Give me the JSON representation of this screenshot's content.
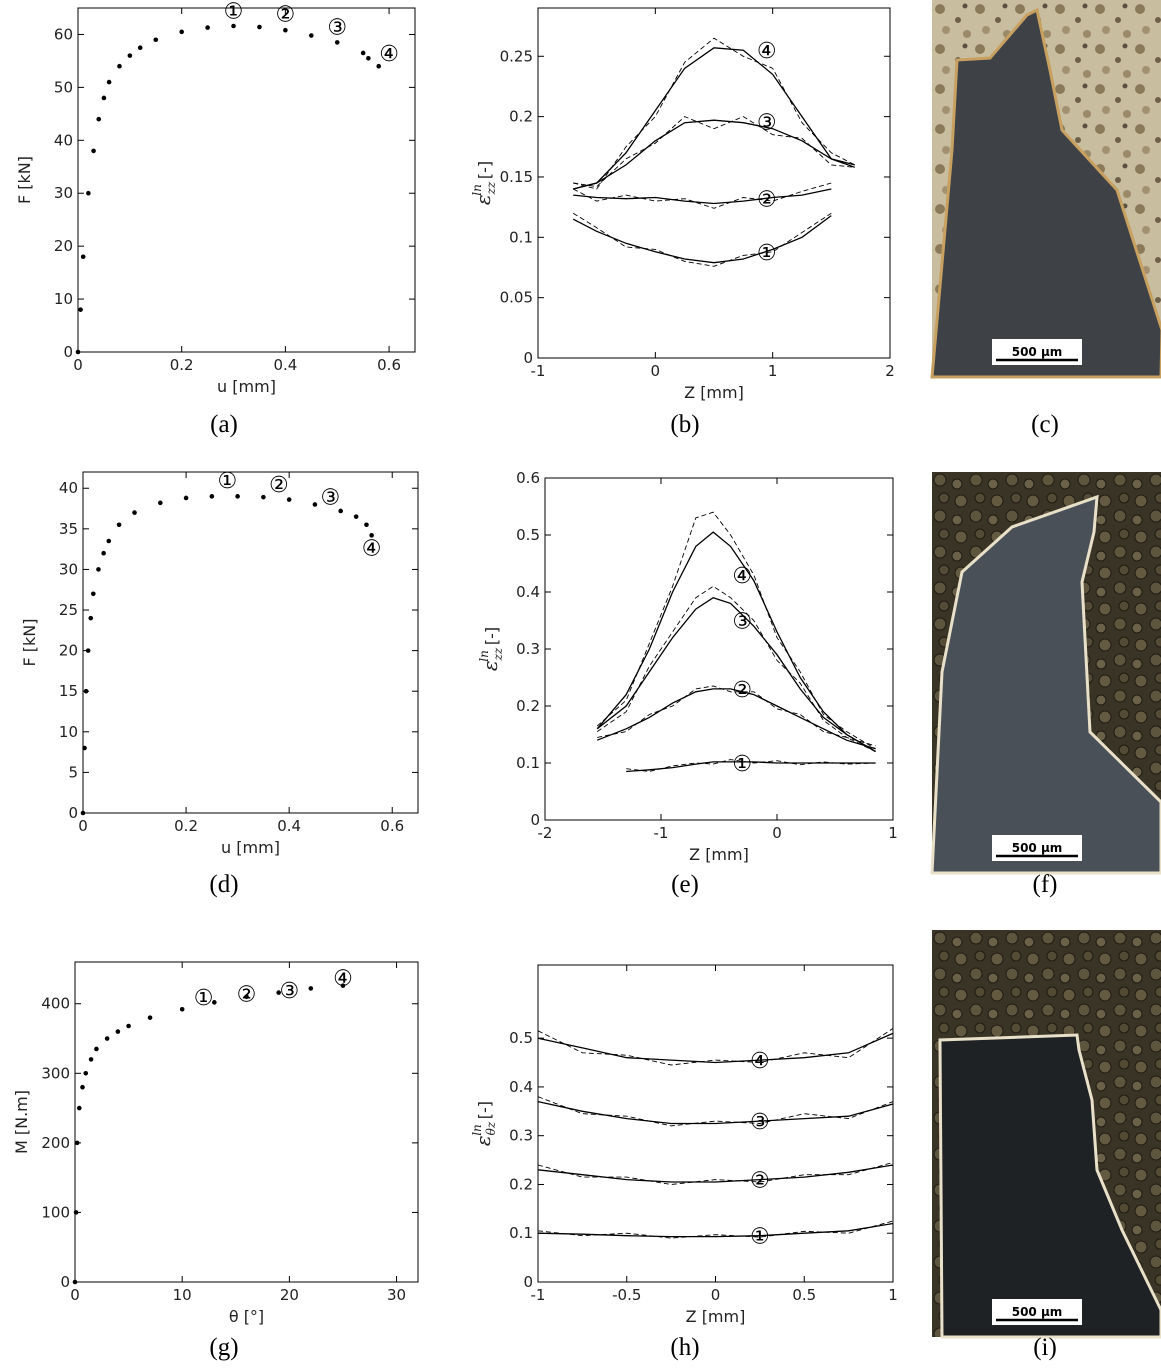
{
  "chart_data": [
    {
      "type": "scatter",
      "caption": "(a)",
      "xlabel": "u [mm]",
      "ylabel": {
        "text": "F [kN]"
      },
      "color": "#000000",
      "xlim": [
        0,
        0.65
      ],
      "xticks": [
        0,
        0.2,
        0.4,
        0.6
      ],
      "ylim": [
        0,
        65
      ],
      "yticks": [
        0,
        10,
        20,
        30,
        40,
        50,
        60
      ],
      "x": [
        0,
        0.005,
        0.01,
        0.02,
        0.03,
        0.04,
        0.05,
        0.06,
        0.08,
        0.1,
        0.12,
        0.15,
        0.2,
        0.25,
        0.3,
        0.35,
        0.4,
        0.45,
        0.5,
        0.55,
        0.56,
        0.58
      ],
      "values": [
        0,
        8,
        18,
        30,
        38,
        44,
        48,
        51,
        54,
        56,
        57.5,
        59,
        60.5,
        61.3,
        61.6,
        61.4,
        60.8,
        59.8,
        58.5,
        56.5,
        55.5,
        54
      ],
      "annotations": [
        {
          "text": "①",
          "x": 0.3,
          "y": 64.5
        },
        {
          "text": "②",
          "x": 0.4,
          "y": 64
        },
        {
          "text": "③",
          "x": 0.5,
          "y": 61.5
        },
        {
          "text": "④",
          "x": 0.6,
          "y": 56.5
        }
      ]
    },
    {
      "type": "line",
      "caption": "(b)",
      "xlabel": "Z [mm]",
      "ylabel": {
        "symbol": "ε",
        "sub": "zz",
        "sup": "ln",
        "unit": "[-]"
      },
      "xlim": [
        -1,
        2
      ],
      "xticks": [
        -1,
        0,
        1,
        2
      ],
      "ylim": [
        0,
        0.29
      ],
      "yticks": [
        0,
        0.05,
        0.1,
        0.15,
        0.2,
        0.25
      ],
      "x": [
        -0.7,
        -0.5,
        -0.25,
        0,
        0.25,
        0.5,
        0.75,
        1,
        1.25,
        1.5,
        1.7
      ],
      "series": [
        {
          "color": "#000000",
          "style": "solid",
          "values": [
            0.14,
            0.145,
            0.17,
            0.205,
            0.24,
            0.257,
            0.255,
            0.235,
            0.2,
            0.165,
            0.158
          ]
        },
        {
          "color": "#000000",
          "style": "dashed",
          "values": [
            0.145,
            0.14,
            0.175,
            0.2,
            0.245,
            0.265,
            0.25,
            0.24,
            0.195,
            0.17,
            0.16
          ]
        },
        {
          "color": "#000000",
          "style": "solid",
          "values": [
            0.14,
            0.145,
            0.16,
            0.18,
            0.195,
            0.197,
            0.195,
            0.19,
            0.18,
            0.165,
            0.16
          ]
        },
        {
          "color": "#000000",
          "style": "dashed",
          "values": [
            0.145,
            0.142,
            0.165,
            0.178,
            0.2,
            0.19,
            0.2,
            0.185,
            0.182,
            0.16,
            0.158
          ]
        },
        {
          "color": "#000000",
          "style": "solid",
          "values": [
            0.135,
            0.133,
            0.132,
            0.133,
            0.13,
            0.128,
            0.13,
            0.133,
            0.135,
            0.14,
            null
          ]
        },
        {
          "color": "#000000",
          "style": "dashed",
          "values": [
            0.14,
            0.13,
            0.135,
            0.13,
            0.132,
            0.124,
            0.133,
            0.13,
            0.138,
            0.145,
            null
          ]
        },
        {
          "color": "#000000",
          "style": "solid",
          "values": [
            0.115,
            0.105,
            0.095,
            0.088,
            0.082,
            0.079,
            0.082,
            0.09,
            0.1,
            0.118,
            null
          ]
        },
        {
          "color": "#000000",
          "style": "dashed",
          "values": [
            0.12,
            0.108,
            0.092,
            0.09,
            0.08,
            0.076,
            0.085,
            0.088,
            0.104,
            0.12,
            null
          ]
        }
      ],
      "annotations": [
        {
          "text": "④",
          "x": 0.95,
          "y": 0.255
        },
        {
          "text": "③",
          "x": 0.95,
          "y": 0.196
        },
        {
          "text": "②",
          "x": 0.95,
          "y": 0.132
        },
        {
          "text": "①",
          "x": 0.95,
          "y": 0.088
        }
      ]
    },
    {
      "type": "scatter",
      "caption": "(d)",
      "xlabel": "u [mm]",
      "ylabel": {
        "text": "F [kN]"
      },
      "color": "#000000",
      "xlim": [
        0,
        0.65
      ],
      "xticks": [
        0,
        0.2,
        0.4,
        0.6
      ],
      "ylim": [
        0,
        42
      ],
      "yticks": [
        0,
        5,
        10,
        15,
        20,
        25,
        30,
        35,
        40
      ],
      "x": [
        0,
        0.003,
        0.006,
        0.01,
        0.015,
        0.02,
        0.03,
        0.04,
        0.05,
        0.07,
        0.1,
        0.15,
        0.2,
        0.25,
        0.3,
        0.35,
        0.4,
        0.45,
        0.5,
        0.53,
        0.55,
        0.56
      ],
      "values": [
        0,
        8,
        15,
        20,
        24,
        27,
        30,
        32,
        33.5,
        35.5,
        37,
        38.2,
        38.8,
        39,
        39,
        38.9,
        38.6,
        38,
        37.2,
        36.5,
        35.5,
        34.2
      ],
      "annotations": [
        {
          "text": "①",
          "x": 0.28,
          "y": 41
        },
        {
          "text": "②",
          "x": 0.38,
          "y": 40.5
        },
        {
          "text": "③",
          "x": 0.48,
          "y": 39
        },
        {
          "text": "④",
          "x": 0.56,
          "y": 32.7
        }
      ]
    },
    {
      "type": "line",
      "caption": "(e)",
      "xlabel": "Z [mm]",
      "ylabel": {
        "symbol": "ε",
        "sub": "zz",
        "sup": "ln",
        "unit": "[-]"
      },
      "xlim": [
        -2,
        1
      ],
      "xticks": [
        -2,
        -1,
        0,
        1
      ],
      "ylim": [
        0,
        0.6
      ],
      "yticks": [
        0,
        0.1,
        0.2,
        0.3,
        0.4,
        0.5,
        0.6
      ],
      "x": [
        -1.55,
        -1.3,
        -1.1,
        -0.9,
        -0.7,
        -0.55,
        -0.4,
        -0.2,
        0,
        0.2,
        0.4,
        0.6,
        0.85
      ],
      "series": [
        {
          "color": "#000000",
          "style": "solid",
          "values": [
            0.16,
            0.22,
            0.3,
            0.4,
            0.48,
            0.505,
            0.48,
            0.42,
            0.33,
            0.25,
            0.19,
            0.15,
            0.12
          ]
        },
        {
          "color": "#000000",
          "style": "dashed",
          "values": [
            0.165,
            0.21,
            0.31,
            0.41,
            0.53,
            0.54,
            0.5,
            0.43,
            0.32,
            0.26,
            0.185,
            0.155,
            0.125
          ]
        },
        {
          "color": "#000000",
          "style": "solid",
          "values": [
            0.16,
            0.2,
            0.26,
            0.32,
            0.37,
            0.39,
            0.38,
            0.34,
            0.29,
            0.23,
            0.18,
            0.15,
            0.12
          ]
        },
        {
          "color": "#000000",
          "style": "dashed",
          "values": [
            0.155,
            0.19,
            0.27,
            0.33,
            0.39,
            0.41,
            0.39,
            0.35,
            0.28,
            0.24,
            0.175,
            0.145,
            0.13
          ]
        },
        {
          "color": "#000000",
          "style": "solid",
          "values": [
            0.14,
            0.16,
            0.18,
            0.205,
            0.225,
            0.23,
            0.23,
            0.22,
            0.2,
            0.18,
            0.16,
            0.14,
            0.125
          ]
        },
        {
          "color": "#000000",
          "style": "dashed",
          "values": [
            0.145,
            0.155,
            0.185,
            0.2,
            0.23,
            0.235,
            0.225,
            0.225,
            0.195,
            0.185,
            0.155,
            0.145,
            0.12
          ]
        },
        {
          "color": "#000000",
          "style": "solid",
          "values": [
            null,
            0.085,
            0.088,
            0.092,
            0.098,
            0.102,
            0.102,
            0.102,
            0.1,
            0.1,
            0.1,
            0.1,
            0.1
          ]
        },
        {
          "color": "#000000",
          "style": "dashed",
          "values": [
            null,
            0.09,
            0.085,
            0.095,
            0.1,
            0.098,
            0.106,
            0.1,
            0.104,
            0.097,
            0.102,
            0.098,
            0.1
          ]
        }
      ],
      "annotations": [
        {
          "text": "④",
          "x": -0.3,
          "y": 0.43
        },
        {
          "text": "③",
          "x": -0.3,
          "y": 0.35
        },
        {
          "text": "②",
          "x": -0.3,
          "y": 0.23
        },
        {
          "text": "①",
          "x": -0.3,
          "y": 0.1
        }
      ]
    },
    {
      "type": "scatter",
      "caption": "(g)",
      "xlabel": "θ [°]",
      "ylabel": {
        "text": "M [N.m]"
      },
      "color": "#000000",
      "xlim": [
        0,
        32
      ],
      "xticks": [
        0,
        10,
        20,
        30
      ],
      "ylim": [
        0,
        460
      ],
      "yticks": [
        0,
        100,
        200,
        300,
        400
      ],
      "x": [
        0,
        0.1,
        0.2,
        0.4,
        0.7,
        1,
        1.5,
        2,
        3,
        4,
        5,
        7,
        10,
        13,
        16,
        19,
        22,
        25
      ],
      "values": [
        0,
        100,
        200,
        250,
        280,
        300,
        320,
        335,
        350,
        360,
        368,
        380,
        392,
        402,
        410,
        416,
        422,
        426
      ],
      "annotations": [
        {
          "text": "①",
          "x": 12,
          "y": 410
        },
        {
          "text": "②",
          "x": 16,
          "y": 415
        },
        {
          "text": "③",
          "x": 20,
          "y": 420
        },
        {
          "text": "④",
          "x": 25,
          "y": 438
        }
      ]
    },
    {
      "type": "line",
      "caption": "(h)",
      "xlabel": "Z [mm]",
      "ylabel": {
        "symbol": "ε",
        "sub": "θz",
        "sup": "ln",
        "unit": "[-]"
      },
      "xlim": [
        -1,
        1
      ],
      "xticks": [
        -1,
        -0.5,
        0,
        0.5,
        1
      ],
      "ylim": [
        0,
        0.65
      ],
      "yticks": [
        0,
        0.1,
        0.2,
        0.3,
        0.4,
        0.5
      ],
      "x": [
        -1,
        -0.75,
        -0.5,
        -0.25,
        0,
        0.25,
        0.5,
        0.75,
        1
      ],
      "series": [
        {
          "color": "#000000",
          "style": "solid",
          "values": [
            0.5,
            0.48,
            0.46,
            0.455,
            0.45,
            0.455,
            0.46,
            0.47,
            0.51
          ]
        },
        {
          "color": "#000000",
          "style": "dashed",
          "values": [
            0.515,
            0.47,
            0.465,
            0.445,
            0.455,
            0.45,
            0.47,
            0.46,
            0.52
          ]
        },
        {
          "color": "#000000",
          "style": "solid",
          "values": [
            0.37,
            0.35,
            0.335,
            0.325,
            0.325,
            0.33,
            0.335,
            0.34,
            0.365
          ]
        },
        {
          "color": "#000000",
          "style": "dashed",
          "values": [
            0.38,
            0.345,
            0.34,
            0.32,
            0.33,
            0.325,
            0.345,
            0.335,
            0.37
          ]
        },
        {
          "color": "#000000",
          "style": "solid",
          "values": [
            0.23,
            0.22,
            0.21,
            0.205,
            0.205,
            0.21,
            0.215,
            0.225,
            0.24
          ]
        },
        {
          "color": "#000000",
          "style": "dashed",
          "values": [
            0.24,
            0.215,
            0.215,
            0.2,
            0.21,
            0.205,
            0.22,
            0.22,
            0.245
          ]
        },
        {
          "color": "#000000",
          "style": "solid",
          "values": [
            0.1,
            0.098,
            0.095,
            0.093,
            0.093,
            0.095,
            0.1,
            0.105,
            0.12
          ]
        },
        {
          "color": "#000000",
          "style": "dashed",
          "values": [
            0.105,
            0.095,
            0.1,
            0.09,
            0.097,
            0.092,
            0.104,
            0.1,
            0.125
          ]
        }
      ],
      "annotations": [
        {
          "text": "④",
          "x": 0.25,
          "y": 0.455
        },
        {
          "text": "③",
          "x": 0.25,
          "y": 0.33
        },
        {
          "text": "②",
          "x": 0.25,
          "y": 0.21
        },
        {
          "text": "①",
          "x": 0.25,
          "y": 0.095
        }
      ]
    }
  ],
  "images": [
    {
      "caption": "(c)",
      "scale_bar": "500 µm"
    },
    {
      "caption": "(f)",
      "scale_bar": "500 µm"
    },
    {
      "caption": "(i)",
      "scale_bar": "500 µm"
    }
  ]
}
